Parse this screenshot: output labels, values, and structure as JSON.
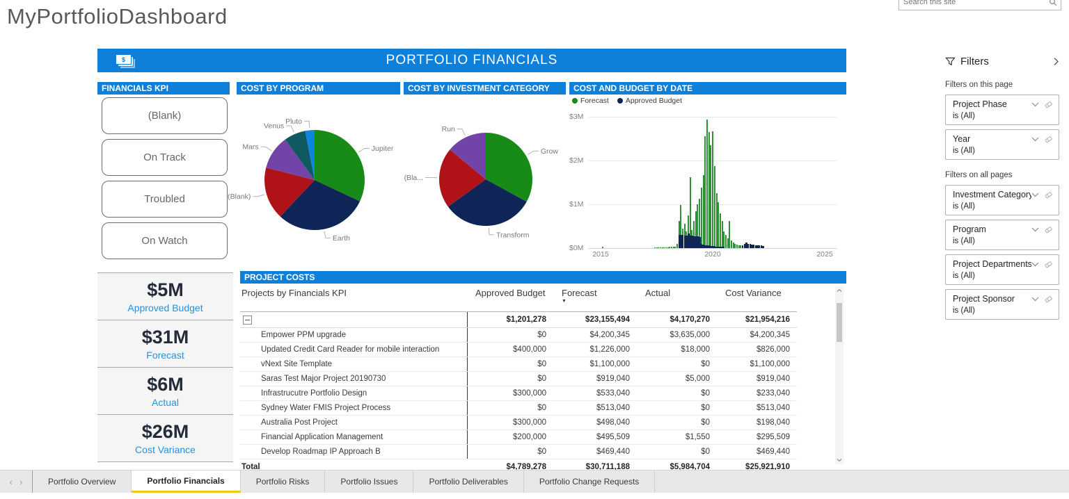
{
  "page_title": "MyPortfolioDashboard",
  "search": {
    "placeholder": "Search this site"
  },
  "banner": {
    "title": "PORTFOLIO FINANCIALS",
    "icon": "money-bills-icon"
  },
  "colors": {
    "accent_blue": "#0e80da",
    "forecast_green": "#188a18",
    "budget_navy": "#0f2557",
    "kpi_label_blue": "#2193e0",
    "active_tab_underline": "#f2c811"
  },
  "sections": {
    "financials_kpi": "FINANCIALS KPI",
    "cost_by_program": "COST BY PROGRAM",
    "cost_by_investment": "COST BY INVESTMENT CATEGORY",
    "cost_and_budget": "COST AND BUDGET BY DATE",
    "project_costs": "PROJECT COSTS"
  },
  "kpi_buttons": [
    "(Blank)",
    "On Track",
    "Troubled",
    "On Watch"
  ],
  "kpi_cards": [
    {
      "value": "$5M",
      "label": "Approved Budget"
    },
    {
      "value": "$31M",
      "label": "Forecast"
    },
    {
      "value": "$6M",
      "label": "Actual"
    },
    {
      "value": "$26M",
      "label": "Cost Variance"
    }
  ],
  "chart_data": [
    {
      "type": "pie",
      "title": "COST BY PROGRAM",
      "slices": [
        {
          "label": "Jupiter",
          "pct": 32,
          "color": "#188a18"
        },
        {
          "label": "Earth",
          "pct": 30,
          "color": "#0f2557"
        },
        {
          "label": "(Blank)",
          "pct": 17,
          "color": "#b01317"
        },
        {
          "label": "Mars",
          "pct": 11,
          "color": "#7244a8"
        },
        {
          "label": "Venus",
          "pct": 7,
          "color": "#0e5a60"
        },
        {
          "label": "Pluto",
          "pct": 3,
          "color": "#0e86e0"
        }
      ]
    },
    {
      "type": "pie",
      "title": "COST BY INVESTMENT CATEGORY",
      "slices": [
        {
          "label": "Grow",
          "pct": 33,
          "color": "#188a18"
        },
        {
          "label": "Transform",
          "pct": 32,
          "color": "#0f2557"
        },
        {
          "label": "(Bla...",
          "pct": 21,
          "color": "#b01317"
        },
        {
          "label": "Run",
          "pct": 14,
          "color": "#7244a8"
        }
      ]
    },
    {
      "type": "bar",
      "title": "COST AND BUDGET BY DATE",
      "ylabel_ticks": [
        "$3M",
        "$2M",
        "$1M",
        "$0M"
      ],
      "x_ticks": [
        2015,
        2020,
        2025
      ],
      "ylim_musd": [
        0,
        3
      ],
      "legend_position": "top-left",
      "series": [
        {
          "name": "Forecast",
          "color": "#188a18",
          "points": [
            [
              2015.08,
              0.04
            ],
            [
              2017.42,
              0.02
            ],
            [
              2017.5,
              0.02
            ],
            [
              2017.58,
              0.02
            ],
            [
              2017.67,
              0.02
            ],
            [
              2017.75,
              0.02
            ],
            [
              2017.83,
              0.02
            ],
            [
              2017.92,
              0.02
            ],
            [
              2018.0,
              0.02
            ],
            [
              2018.08,
              0.03
            ],
            [
              2018.17,
              0.03
            ],
            [
              2018.25,
              0.03
            ],
            [
              2018.33,
              0.03
            ],
            [
              2018.42,
              0.1
            ],
            [
              2018.5,
              0.62
            ],
            [
              2018.58,
              0.98
            ],
            [
              2018.67,
              0.45
            ],
            [
              2018.75,
              0.55
            ],
            [
              2018.83,
              0.38
            ],
            [
              2018.92,
              0.75
            ],
            [
              2019.0,
              1.62
            ],
            [
              2019.08,
              0.42
            ],
            [
              2019.17,
              0.62
            ],
            [
              2019.25,
              0.85
            ],
            [
              2019.33,
              1.0
            ],
            [
              2019.42,
              1.12
            ],
            [
              2019.5,
              1.38
            ],
            [
              2019.58,
              1.67
            ],
            [
              2019.67,
              2.55
            ],
            [
              2019.75,
              2.93
            ],
            [
              2019.83,
              2.65
            ],
            [
              2019.92,
              2.35
            ],
            [
              2020.0,
              2.67
            ],
            [
              2020.08,
              1.88
            ],
            [
              2020.17,
              1.25
            ],
            [
              2020.25,
              1.05
            ],
            [
              2020.33,
              0.8
            ],
            [
              2020.42,
              0.62
            ],
            [
              2020.5,
              0.38
            ],
            [
              2020.58,
              0.3
            ],
            [
              2020.67,
              0.22
            ],
            [
              2020.75,
              0.62
            ],
            [
              2020.83,
              0.18
            ],
            [
              2020.92,
              0.12
            ],
            [
              2021.0,
              0.1
            ],
            [
              2021.08,
              0.08
            ],
            [
              2021.17,
              0.07
            ],
            [
              2021.25,
              0.06
            ],
            [
              2021.33,
              0.05
            ],
            [
              2021.42,
              0.05
            ],
            [
              2021.5,
              0.04
            ],
            [
              2021.58,
              0.04
            ],
            [
              2021.67,
              0.03
            ],
            [
              2021.75,
              0.03
            ],
            [
              2021.83,
              0.03
            ],
            [
              2021.92,
              0.03
            ],
            [
              2022.0,
              0.03
            ],
            [
              2022.08,
              0.02
            ],
            [
              2022.17,
              0.02
            ],
            [
              2022.25,
              0.02
            ]
          ]
        },
        {
          "name": "Approved Budget",
          "color": "#0f2557",
          "points": [
            [
              2018.5,
              0.3
            ],
            [
              2018.58,
              0.3
            ],
            [
              2018.67,
              0.3
            ],
            [
              2018.75,
              0.29
            ],
            [
              2018.83,
              0.28
            ],
            [
              2018.92,
              0.33
            ],
            [
              2019.0,
              0.28
            ],
            [
              2019.08,
              0.28
            ],
            [
              2019.17,
              0.27
            ],
            [
              2019.25,
              0.27
            ],
            [
              2019.33,
              0.27
            ],
            [
              2019.42,
              0.26
            ],
            [
              2019.5,
              0.1
            ],
            [
              2019.58,
              0.08
            ],
            [
              2019.67,
              0.07
            ],
            [
              2019.75,
              0.06
            ],
            [
              2019.83,
              0.06
            ],
            [
              2019.92,
              0.05
            ],
            [
              2020.0,
              0.05
            ],
            [
              2020.08,
              0.05
            ],
            [
              2020.17,
              0.04
            ],
            [
              2020.25,
              0.04
            ],
            [
              2020.33,
              0.04
            ],
            [
              2020.42,
              0.03
            ],
            [
              2020.5,
              0.03
            ],
            [
              2021.33,
              0.06
            ],
            [
              2021.42,
              0.1
            ],
            [
              2021.5,
              0.13
            ],
            [
              2021.58,
              0.1
            ],
            [
              2021.67,
              0.09
            ],
            [
              2021.75,
              0.08
            ],
            [
              2021.83,
              0.08
            ],
            [
              2021.92,
              0.07
            ],
            [
              2022.0,
              0.07
            ],
            [
              2022.08,
              0.06
            ],
            [
              2022.17,
              0.06
            ],
            [
              2022.25,
              0.05
            ]
          ]
        }
      ]
    }
  ],
  "table": {
    "columns": [
      "Projects by Financials KPI",
      "Approved Budget",
      "Forecast",
      "Actual",
      "Cost Variance"
    ],
    "sorted_column": "Forecast",
    "group_row": {
      "values": [
        "$1,201,278",
        "$23,155,494",
        "$4,170,270",
        "$21,954,216"
      ]
    },
    "rows": [
      {
        "name": "Empower PPM upgrade",
        "values": [
          "$0",
          "$4,200,345",
          "$3,635,000",
          "$4,200,345"
        ]
      },
      {
        "name": "Updated Credit Card Reader for mobile interaction",
        "values": [
          "$400,000",
          "$1,226,000",
          "$18,000",
          "$826,000"
        ]
      },
      {
        "name": "vNext Site Template",
        "values": [
          "$0",
          "$1,100,000",
          "$0",
          "$1,100,000"
        ]
      },
      {
        "name": "Saras Test Major Project 20190730",
        "values": [
          "$0",
          "$919,040",
          "$5,000",
          "$919,040"
        ]
      },
      {
        "name": "Infrastrucutre Portfolio Design",
        "values": [
          "$300,000",
          "$533,040",
          "$0",
          "$233,040"
        ]
      },
      {
        "name": "Sydney Water FMIS Project Process",
        "values": [
          "$0",
          "$513,040",
          "$0",
          "$513,040"
        ]
      },
      {
        "name": "Australia Post Project",
        "values": [
          "$300,000",
          "$498,040",
          "$0",
          "$198,040"
        ]
      },
      {
        "name": "Financial Application Management",
        "values": [
          "$200,000",
          "$495,509",
          "$1,550",
          "$295,509"
        ]
      },
      {
        "name": "Develop Roadmap IP Approach B",
        "values": [
          "$0",
          "$469,440",
          "$0",
          "$469,440"
        ]
      }
    ],
    "total_row": {
      "name": "Total",
      "values": [
        "$4,789,278",
        "$30,711,188",
        "$5,984,704",
        "$25,921,910"
      ]
    }
  },
  "filters": {
    "title": "Filters",
    "sections": [
      {
        "label": "Filters on this page",
        "items": [
          {
            "name": "Project Phase",
            "value": "is (All)"
          },
          {
            "name": "Year",
            "value": "is (All)"
          }
        ]
      },
      {
        "label": "Filters on all pages",
        "items": [
          {
            "name": "Investment Category",
            "value": "is (All)"
          },
          {
            "name": "Program",
            "value": "is (All)"
          },
          {
            "name": "Project Departments",
            "value": "is (All)"
          },
          {
            "name": "Project Sponsor",
            "value": "is (All)"
          }
        ]
      }
    ]
  },
  "tabs": {
    "items": [
      "Portfolio Overview",
      "Portfolio Financials",
      "Portfolio Risks",
      "Portfolio Issues",
      "Portfolio Deliverables",
      "Portfolio Change Requests"
    ],
    "active": "Portfolio Financials"
  }
}
